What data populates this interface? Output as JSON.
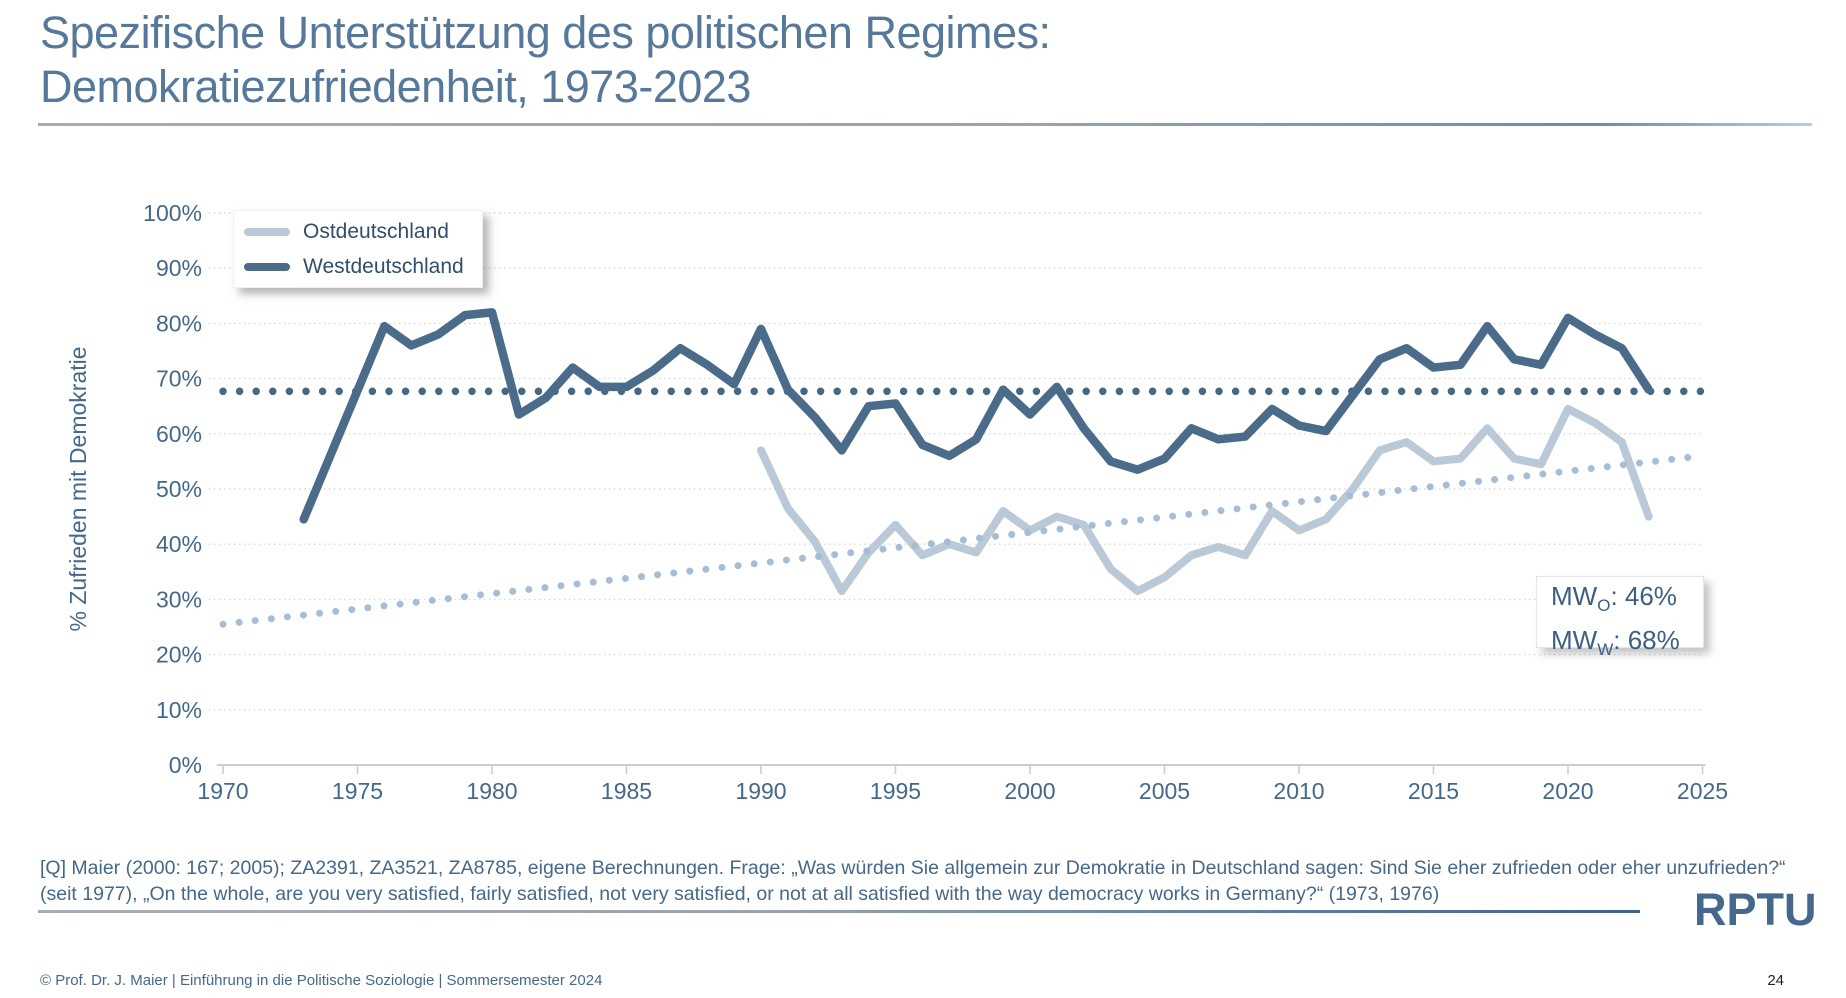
{
  "slide": {
    "title_line1": "Spezifische Unterstützung des politischen Regimes:",
    "title_line2": "Demokratiezufriedenheit, 1973-2023",
    "source_line1": "[Q] Maier (2000: 167; 2005); ZA2391, ZA3521, ZA8785, eigene Berechnungen. Frage: „Was würden Sie allgemein zur Demokratie in Deutschland sagen: Sind Sie eher zufrieden oder eher unzufrieden?“",
    "source_line2": "(seit 1977), „On the whole, are you very satisfied, fairly satisfied, not very satisfied, or not at all satisfied with the way democracy works in Germany?“ (1973, 1976)",
    "copyright": "© Prof. Dr. J. Maier | Einführung in die Politische Soziologie | Sommersemester 2024",
    "page_number": "24",
    "logo_text": "RPTU",
    "title_color": "#56799b"
  },
  "legend": {
    "position": "top-left",
    "items": [
      {
        "label": "Ostdeutschland",
        "color": "#b9c9d8"
      },
      {
        "label": "Westdeutschland",
        "color": "#4a6b89"
      }
    ]
  },
  "annotation_box": {
    "lines": [
      {
        "prefix": "MW",
        "sub": "O",
        "value": ": 46%"
      },
      {
        "prefix": "MW",
        "sub": "W",
        "value": ": 68%"
      }
    ]
  },
  "chart_data": {
    "type": "line",
    "title": "",
    "xlabel": "",
    "ylabel": "% Zufrieden mit Demokratie",
    "xlim": [
      1970,
      2025
    ],
    "ylim": [
      0,
      100
    ],
    "grid": "horizontal-dotted",
    "x_ticks": [
      1970,
      1975,
      1980,
      1985,
      1990,
      1995,
      2000,
      2005,
      2010,
      2015,
      2020,
      2025
    ],
    "x_tick_labels": [
      "1970",
      "1975",
      "1980",
      "1985",
      "1990",
      "1995",
      "2000",
      "2005",
      "2010",
      "2015",
      "2020",
      "2025"
    ],
    "y_ticks": [
      0,
      10,
      20,
      30,
      40,
      50,
      60,
      70,
      80,
      90,
      100
    ],
    "y_tick_labels": [
      "0%",
      "10%",
      "20%",
      "30%",
      "40%",
      "50%",
      "60%",
      "70%",
      "80%",
      "90%",
      "100%"
    ],
    "series": [
      {
        "name": "Ostdeutschland",
        "color": "#b9c9d8",
        "points": [
          [
            1990,
            57
          ],
          [
            1991,
            46.5
          ],
          [
            1992,
            40.5
          ],
          [
            1993,
            31.5
          ],
          [
            1994,
            38.5
          ],
          [
            1995,
            43.5
          ],
          [
            1996,
            38
          ],
          [
            1997,
            40
          ],
          [
            1998,
            38.5
          ],
          [
            1999,
            46
          ],
          [
            2000,
            42.5
          ],
          [
            2001,
            45
          ],
          [
            2002,
            43.5
          ],
          [
            2003,
            35.5
          ],
          [
            2004,
            31.5
          ],
          [
            2005,
            34
          ],
          [
            2006,
            38
          ],
          [
            2007,
            39.5
          ],
          [
            2008,
            38
          ],
          [
            2009,
            46
          ],
          [
            2010,
            42.5
          ],
          [
            2011,
            44.5
          ],
          [
            2012,
            50
          ],
          [
            2013,
            57
          ],
          [
            2014,
            58.5
          ],
          [
            2015,
            55
          ],
          [
            2016,
            55.5
          ],
          [
            2017,
            61
          ],
          [
            2018,
            55.5
          ],
          [
            2019,
            54.5
          ],
          [
            2020,
            64.5
          ],
          [
            2021,
            62
          ],
          [
            2022,
            58.5
          ],
          [
            2023,
            45
          ]
        ]
      },
      {
        "name": "Westdeutschland",
        "color": "#4a6b89",
        "points": [
          [
            1973,
            44.5
          ],
          [
            1976,
            79.5
          ],
          [
            1977,
            76
          ],
          [
            1978,
            78
          ],
          [
            1979,
            81.5
          ],
          [
            1980,
            82
          ],
          [
            1981,
            63.5
          ],
          [
            1982,
            66.5
          ],
          [
            1983,
            72
          ],
          [
            1984,
            68.5
          ],
          [
            1985,
            68.5
          ],
          [
            1986,
            71.5
          ],
          [
            1987,
            75.5
          ],
          [
            1988,
            72.5
          ],
          [
            1989,
            69
          ],
          [
            1990,
            79
          ],
          [
            1991,
            68
          ],
          [
            1992,
            63
          ],
          [
            1993,
            57
          ],
          [
            1994,
            65
          ],
          [
            1995,
            65.5
          ],
          [
            1996,
            58
          ],
          [
            1997,
            56
          ],
          [
            1998,
            59
          ],
          [
            1999,
            68
          ],
          [
            2000,
            63.5
          ],
          [
            2001,
            68.5
          ],
          [
            2002,
            61
          ],
          [
            2003,
            55
          ],
          [
            2004,
            53.5
          ],
          [
            2005,
            55.5
          ],
          [
            2006,
            61
          ],
          [
            2007,
            59
          ],
          [
            2008,
            59.5
          ],
          [
            2009,
            64.5
          ],
          [
            2010,
            61.5
          ],
          [
            2011,
            60.5
          ],
          [
            2012,
            67
          ],
          [
            2013,
            73.5
          ],
          [
            2014,
            75.5
          ],
          [
            2015,
            72
          ],
          [
            2016,
            72.5
          ],
          [
            2017,
            79.5
          ],
          [
            2018,
            73.5
          ],
          [
            2019,
            72.5
          ],
          [
            2020,
            81
          ],
          [
            2021,
            78
          ],
          [
            2022,
            75.5
          ],
          [
            2023,
            68
          ]
        ]
      }
    ],
    "reference_lines": [
      {
        "name": "mean-west",
        "type": "horizontal",
        "value": 68,
        "style": "dotted",
        "color": "#466885"
      },
      {
        "name": "trend-ost",
        "type": "linear",
        "from": [
          1970,
          25.5
        ],
        "to": [
          2025,
          56
        ],
        "style": "dotted",
        "color": "#a7bdd3"
      }
    ],
    "annotations": [
      "MWO: 46%",
      "MWW: 68%"
    ]
  }
}
